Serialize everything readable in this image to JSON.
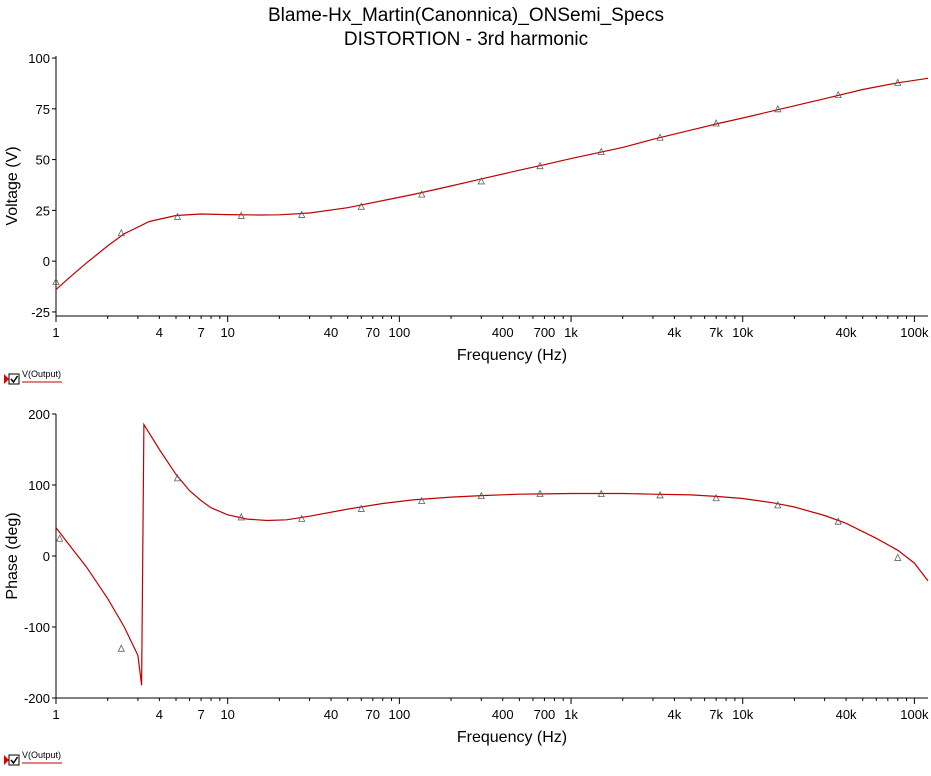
{
  "title": "Blame-Hx_Martin(Canonnica)_ONSemi_Specs",
  "subtitle": "DISTORTION - 3rd harmonic",
  "colors": {
    "trace": "#c00000",
    "axis": "#000000",
    "background": "#ffffff",
    "legend_marker": "#e00000"
  },
  "chart_data": [
    {
      "type": "line",
      "xlabel": "Frequency (Hz)",
      "ylabel": "Voltage (V)",
      "x_scale": "log",
      "xlim": [
        1,
        120000
      ],
      "ylim": [
        -27,
        101
      ],
      "x_ticks": [
        {
          "value": 1,
          "label": "1"
        },
        {
          "value": 4,
          "label": "4"
        },
        {
          "value": 7,
          "label": "7"
        },
        {
          "value": 10,
          "label": "10"
        },
        {
          "value": 40,
          "label": "40"
        },
        {
          "value": 70,
          "label": "70"
        },
        {
          "value": 100,
          "label": "100"
        },
        {
          "value": 400,
          "label": "400"
        },
        {
          "value": 700,
          "label": "700"
        },
        {
          "value": 1000,
          "label": "1k"
        },
        {
          "value": 4000,
          "label": "4k"
        },
        {
          "value": 7000,
          "label": "7k"
        },
        {
          "value": 10000,
          "label": "10k"
        },
        {
          "value": 40000,
          "label": "40k"
        },
        {
          "value": 100000,
          "label": "100k"
        }
      ],
      "y_ticks": [
        {
          "value": 100,
          "label": "100"
        },
        {
          "value": 75,
          "label": "75"
        },
        {
          "value": 50,
          "label": "50"
        },
        {
          "value": 25,
          "label": "25"
        },
        {
          "value": 0,
          "label": "0"
        },
        {
          "value": -25,
          "label": "-25"
        }
      ],
      "legend": {
        "label": "V(Output)",
        "placement": "bottom-left"
      },
      "series": [
        {
          "name": "V(Output)",
          "x": [
            1,
            1.2,
            1.5,
            2,
            2.5,
            3.5,
            5,
            7,
            10,
            15,
            20,
            30,
            50,
            80,
            120,
            200,
            300,
            500,
            700,
            1000,
            2000,
            3000,
            5000,
            7000,
            10000,
            20000,
            30000,
            50000,
            80000,
            120000
          ],
          "y": [
            -14,
            -8,
            -1,
            7.5,
            13.5,
            19.5,
            22.5,
            23.2,
            22.9,
            22.7,
            22.8,
            23.7,
            26.3,
            29.8,
            32.8,
            37,
            40.5,
            44.8,
            47.5,
            50.5,
            56,
            60,
            64.5,
            67.5,
            70.5,
            76.5,
            80,
            84.5,
            87.8,
            90
          ]
        }
      ],
      "markers": {
        "x": [
          1,
          2.4,
          5.1,
          12,
          27,
          60,
          135,
          300,
          660,
          1500,
          3300,
          7000,
          16000,
          36000,
          80000
        ],
        "y": [
          -10,
          14,
          22,
          22.5,
          23,
          27,
          33,
          39.5,
          47,
          54,
          61,
          68,
          75,
          82,
          88
        ]
      }
    },
    {
      "type": "line",
      "xlabel": "Frequency (Hz)",
      "ylabel": "Phase (deg)",
      "x_scale": "log",
      "xlim": [
        1,
        120000
      ],
      "ylim": [
        -200,
        200
      ],
      "x_ticks": [
        {
          "value": 1,
          "label": "1"
        },
        {
          "value": 4,
          "label": "4"
        },
        {
          "value": 7,
          "label": "7"
        },
        {
          "value": 10,
          "label": "10"
        },
        {
          "value": 40,
          "label": "40"
        },
        {
          "value": 70,
          "label": "70"
        },
        {
          "value": 100,
          "label": "100"
        },
        {
          "value": 400,
          "label": "400"
        },
        {
          "value": 700,
          "label": "700"
        },
        {
          "value": 1000,
          "label": "1k"
        },
        {
          "value": 4000,
          "label": "4k"
        },
        {
          "value": 7000,
          "label": "7k"
        },
        {
          "value": 10000,
          "label": "10k"
        },
        {
          "value": 40000,
          "label": "40k"
        },
        {
          "value": 100000,
          "label": "100k"
        }
      ],
      "y_ticks": [
        {
          "value": 200,
          "label": "200"
        },
        {
          "value": 100,
          "label": "100"
        },
        {
          "value": 0,
          "label": "0"
        },
        {
          "value": -100,
          "label": "-100"
        },
        {
          "value": -200,
          "label": "-200"
        }
      ],
      "legend": {
        "label": "V(Output)",
        "placement": "bottom-left"
      },
      "series": [
        {
          "name": "V(Output)",
          "x": [
            1,
            1.2,
            1.5,
            2,
            2.5,
            3,
            3.15,
            3.25,
            4,
            5,
            6,
            7,
            8,
            10,
            13,
            17,
            22,
            30,
            50,
            80,
            120,
            200,
            300,
            500,
            700,
            1000,
            2000,
            3000,
            5000,
            7000,
            10000,
            15000,
            20000,
            30000,
            40000,
            60000,
            80000,
            100000,
            120000
          ],
          "y": [
            40,
            15,
            -15,
            -60,
            -100,
            -140,
            -182,
            185,
            150,
            115,
            92,
            78,
            68,
            58,
            52,
            50,
            51,
            56,
            66,
            74,
            79,
            83,
            85,
            87,
            87.5,
            88,
            88,
            87,
            86,
            84,
            81,
            75,
            69,
            57,
            46,
            25,
            8,
            -10,
            -35
          ]
        }
      ],
      "markers": {
        "x": [
          1.05,
          2.4,
          5.1,
          12,
          27,
          60,
          135,
          300,
          660,
          1500,
          3300,
          7000,
          16000,
          36000,
          80000
        ],
        "y": [
          25,
          -130,
          110,
          55,
          53,
          67,
          78,
          85,
          88,
          88,
          86,
          82,
          72,
          49,
          -2
        ]
      }
    }
  ]
}
